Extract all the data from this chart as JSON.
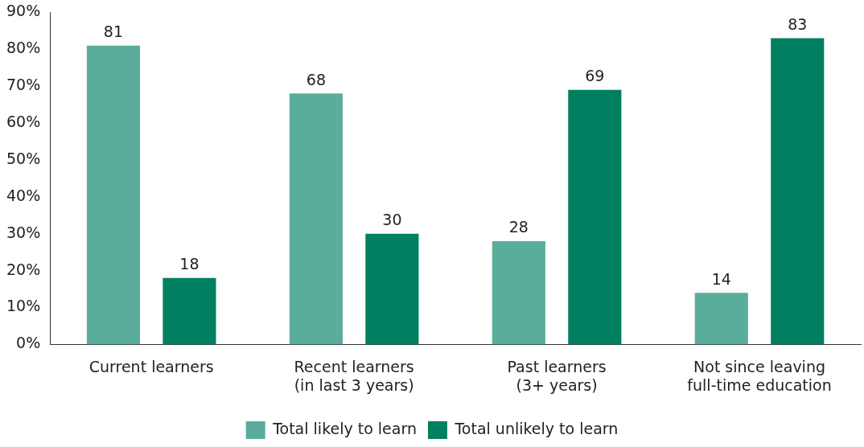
{
  "chart_data": {
    "type": "bar",
    "categories": [
      "Current learners",
      "Recent learners\n(in last 3 years)",
      "Past learners\n(3+ years)",
      "Not since leaving\nfull-time education"
    ],
    "series": [
      {
        "name": "Total likely to learn",
        "color": "#5aad9a",
        "values": [
          81,
          68,
          28,
          14
        ]
      },
      {
        "name": "Total unlikely to learn",
        "color": "#008060",
        "values": [
          18,
          30,
          69,
          83
        ]
      }
    ],
    "ylim": [
      0,
      90
    ],
    "yticks": [
      {
        "value": 0,
        "label": "0%"
      },
      {
        "value": 10,
        "label": "10%"
      },
      {
        "value": 20,
        "label": "20%"
      },
      {
        "value": 30,
        "label": "30%"
      },
      {
        "value": 40,
        "label": "40%"
      },
      {
        "value": 50,
        "label": "50%"
      },
      {
        "value": 60,
        "label": "60%"
      },
      {
        "value": 70,
        "label": "70%"
      },
      {
        "value": 80,
        "label": "80%"
      },
      {
        "value": 90,
        "label": "90%"
      }
    ],
    "grid": false,
    "legend": "bottom",
    "data_labels": true
  }
}
